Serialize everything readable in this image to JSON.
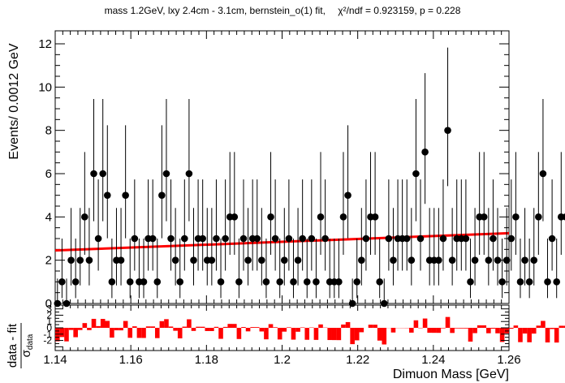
{
  "title": {
    "main": "mass 1.2GeV, lxy 2.4cm - 3.1cm, bernstein_o(1) fit,",
    "chi2_label": "χ²/ndf = 0.923159, p = 0.228"
  },
  "chart_data": [
    {
      "type": "scatter",
      "title": "mass 1.2GeV, lxy 2.4cm - 3.1cm, bernstein_o(1) fit,    χ²/ndf = 0.923159, p = 0.228",
      "xlabel": "Dimuon Mass [GeV]",
      "ylabel": "Events/ 0.0012 GeV",
      "xlim": [
        1.14,
        1.26
      ],
      "ylim": [
        0,
        12.6
      ],
      "x_ticks": [
        "1.14",
        "1.16",
        "1.18",
        "1.2",
        "1.22",
        "1.24",
        "1.26"
      ],
      "y_ticks": [
        "0",
        "2",
        "4",
        "6",
        "8",
        "10",
        "12"
      ],
      "bin_width": 0.0012,
      "series": [
        {
          "kind": "data_points_with_errors",
          "color": "#000000",
          "x_start": 1.1406,
          "values": [
            0,
            1,
            0,
            2,
            1,
            2,
            4,
            2,
            6,
            3,
            6,
            5,
            1,
            2,
            2,
            5,
            1,
            3,
            1,
            1,
            3,
            3,
            1,
            5,
            6,
            3,
            2,
            1,
            3,
            6,
            2,
            3,
            3,
            2,
            2,
            3,
            1,
            3,
            4,
            4,
            1,
            3,
            2,
            3,
            3,
            2,
            1,
            4,
            3,
            1,
            2,
            3,
            1,
            2,
            3,
            1,
            3,
            1,
            4,
            3,
            1,
            1,
            1,
            4,
            5,
            0,
            1,
            2,
            3,
            4,
            4,
            1,
            0,
            3,
            2,
            3,
            3,
            3,
            2,
            6,
            3,
            7,
            2,
            2,
            2,
            3,
            8,
            2,
            3,
            3,
            3,
            1,
            2,
            4,
            4,
            2,
            3,
            2,
            1,
            2,
            3,
            4,
            1,
            2,
            1,
            2,
            4,
            6,
            1,
            3,
            1,
            4,
            4,
            3,
            2,
            4,
            4,
            3,
            2,
            3,
            4,
            2
          ]
        },
        {
          "kind": "fit_line",
          "name": "bernstein_o(1)",
          "color": "#ff0000",
          "y_at_xmin": 2.45,
          "y_at_xmax": 3.25
        }
      ]
    },
    {
      "type": "bar",
      "ylabel": "data - fit / σ_data",
      "xlim": [
        1.14,
        1.26
      ],
      "ylim": [
        -3.6,
        3.6
      ],
      "y_ticks": [
        "-2",
        "-1",
        "0",
        "1",
        "2",
        "3"
      ],
      "color": "#ff0000"
    }
  ]
}
